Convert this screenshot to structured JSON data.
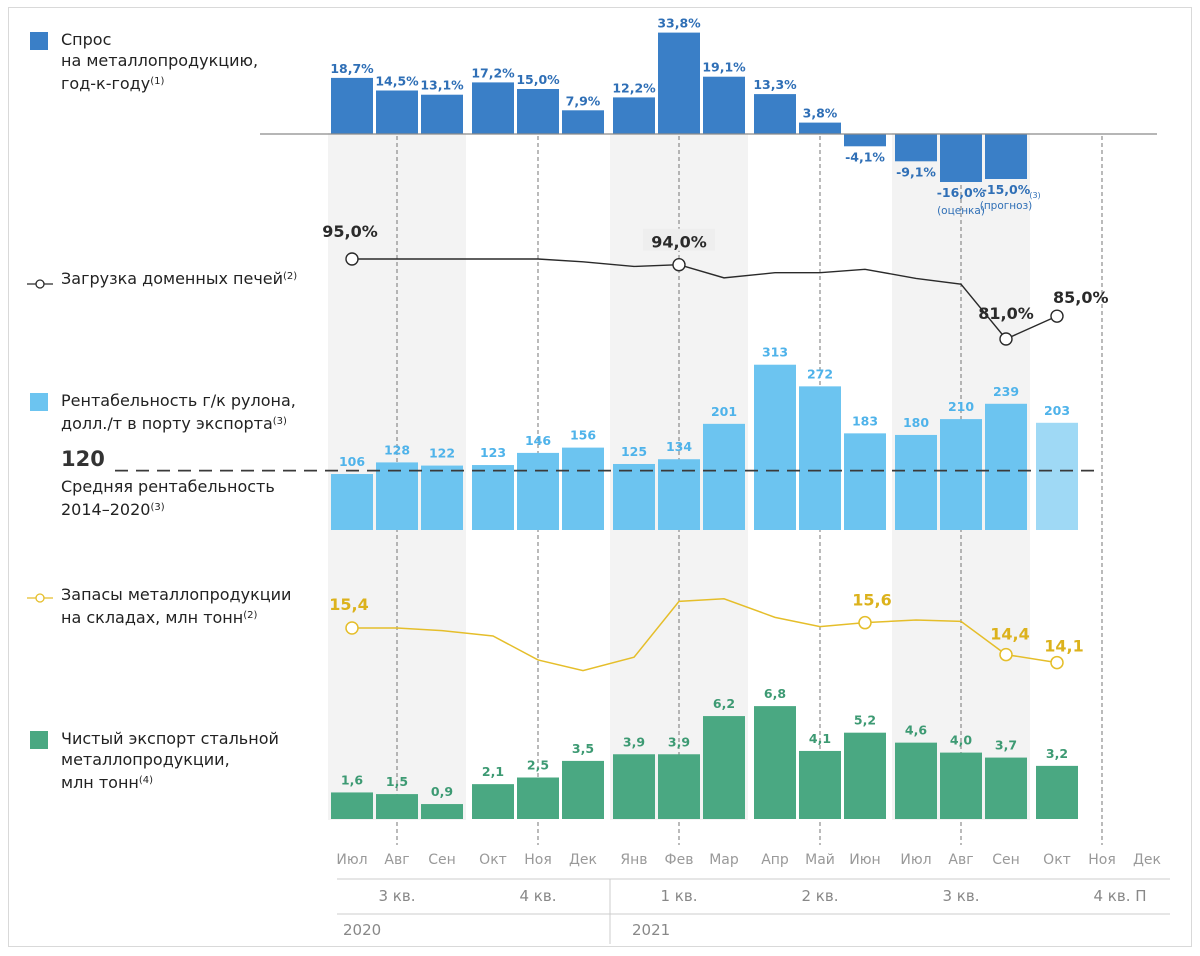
{
  "legends": {
    "demand": {
      "line1": "Спрос",
      "line2": "на металлопродукцию,",
      "line3": "год-к-году",
      "note": "(1)",
      "color": "#3a7fc7"
    },
    "blast_furnace": {
      "line1": "Загрузка доменных печей",
      "note": "(2)",
      "color": "#2a2a2a"
    },
    "profitability": {
      "line1": "Рентабельность г/к рулона,",
      "line2": "долл./т в порту экспорта",
      "note": "(3)",
      "color": "#6cc4f0"
    },
    "average": {
      "value": "120",
      "line1": "Средняя рентабельность",
      "line2": "2014–2020",
      "note": "(3)"
    },
    "stocks": {
      "line1": "Запасы металлопродукции",
      "line2": "на складах, млн тонн",
      "note": "(2)",
      "color": "#e5be2a"
    },
    "export": {
      "line1": "Чистый экспорт стальной",
      "line2": "металлопродукции,",
      "line3": "млн тонн",
      "note": "(4)",
      "color": "#4aa882"
    }
  },
  "chart_data": [
    {
      "type": "bar",
      "title": "Спрос на металлопродукцию, год-к-году(1)",
      "categories": [
        "Июл 2020",
        "Авг 2020",
        "Сен 2020",
        "Окт 2020",
        "Ноя 2020",
        "Дек 2020",
        "Янв 2021",
        "Фев 2021",
        "Мар 2021",
        "Апр 2021",
        "Май 2021",
        "Июн 2021",
        "Июл 2021",
        "Авг 2021",
        "Сен 2021"
      ],
      "values": [
        18.7,
        14.5,
        13.1,
        17.2,
        15.0,
        7.9,
        12.2,
        33.8,
        19.1,
        13.3,
        3.8,
        -4.1,
        -9.1,
        -16.0,
        -15.0
      ],
      "labels": [
        "18,7%",
        "14,5%",
        "13,1%",
        "17,2%",
        "15,0%",
        "7,9%",
        "12,2%",
        "33,8%",
        "19,1%",
        "13,3%",
        "3,8%",
        "-4,1%",
        "-9,1%",
        "-16,0%",
        "-15,0%"
      ],
      "notes": {
        "Авг 2021": "(оценка)",
        "Сен 2021": "(прогноз)",
        "Сен 2021 footnote": "(3)"
      },
      "unit": "%"
    },
    {
      "type": "line",
      "title": "Загрузка доменных печей(2)",
      "x": [
        "Июл 2020",
        "Авг 2020",
        "Сен 2020",
        "Окт 2020",
        "Ноя 2020",
        "Дек 2020",
        "Янв 2021",
        "Фев 2021",
        "Мар 2021",
        "Апр 2021",
        "Май 2021",
        "Июн 2021",
        "Июл 2021",
        "Авг 2021",
        "Сен 2021",
        "Окт 2021"
      ],
      "y": [
        95.0,
        95.0,
        95.0,
        95.0,
        95.0,
        94.5,
        93.7,
        94.0,
        91.7,
        92.6,
        92.6,
        93.2,
        91.6,
        90.6,
        81.0,
        85.0
      ],
      "labels": {
        "Июл 2020": "95,0%",
        "Фев 2021": "94,0%",
        "Сен 2021": "81,0%",
        "Окт 2021": "85,0%"
      },
      "unit": "%"
    },
    {
      "type": "bar",
      "title": "Рентабельность г/к рулона, долл./т в порту экспорта(3)",
      "categories": [
        "Июл 2020",
        "Авг 2020",
        "Сен 2020",
        "Окт 2020",
        "Ноя 2020",
        "Дек 2020",
        "Янв 2021",
        "Фев 2021",
        "Мар 2021",
        "Апр 2021",
        "Май 2021",
        "Июн 2021",
        "Июл 2021",
        "Авг 2021",
        "Сен 2021",
        "Окт 2021"
      ],
      "values": [
        106,
        128,
        122,
        123,
        146,
        156,
        125,
        134,
        201,
        313,
        272,
        183,
        180,
        210,
        239,
        203
      ],
      "reference_line": {
        "value": 120,
        "label": "Средняя рентабельность 2014–2020(3)",
        "style": "dashed"
      },
      "unit": "долл./т"
    },
    {
      "type": "line",
      "title": "Запасы металлопродукции на складах, млн тонн(2)",
      "x": [
        "Июл 2020",
        "Авг 2020",
        "Сен 2020",
        "Окт 2020",
        "Ноя 2020",
        "Дек 2020",
        "Янв 2021",
        "Фев 2021",
        "Мар 2021",
        "Апр 2021",
        "Май 2021",
        "Июн 2021",
        "Июл 2021",
        "Авг 2021",
        "Сен 2021",
        "Окт 2021"
      ],
      "y": [
        15.4,
        15.4,
        15.3,
        15.1,
        14.2,
        13.8,
        14.3,
        16.4,
        16.5,
        15.8,
        15.45,
        15.6,
        15.7,
        15.65,
        14.4,
        14.1
      ],
      "labels": {
        "Июл 2020": "15,4",
        "Июн 2021": "15,6",
        "Сен 2021": "14,4",
        "Окт 2021": "14,1"
      },
      "unit": "млн тонн"
    },
    {
      "type": "bar",
      "title": "Чистый экспорт стальной металлопродукции, млн тонн(4)",
      "categories": [
        "Июл 2020",
        "Авг 2020",
        "Сен 2020",
        "Окт 2020",
        "Ноя 2020",
        "Дек 2020",
        "Янв 2021",
        "Фев 2021",
        "Мар 2021",
        "Апр 2021",
        "Май 2021",
        "Июн 2021",
        "Июл 2021",
        "Авг 2021",
        "Сен 2021",
        "Окт 2021"
      ],
      "values": [
        1.6,
        1.5,
        0.9,
        2.1,
        2.5,
        3.5,
        3.9,
        3.9,
        6.2,
        6.8,
        4.1,
        5.2,
        4.6,
        4.0,
        3.7,
        3.2
      ],
      "labels": [
        "1,6",
        "1,5",
        "0,9",
        "2,1",
        "2,5",
        "3,5",
        "3,9",
        "3,9",
        "6,2",
        "6,8",
        "4,1",
        "5,2",
        "4,6",
        "4,0",
        "3,7",
        "3,2"
      ],
      "unit": "млн тонн"
    }
  ],
  "x_axis": {
    "months": [
      "Июл",
      "Авг",
      "Сен",
      "Окт",
      "Ноя",
      "Дек",
      "Янв",
      "Фев",
      "Мар",
      "Апр",
      "Май",
      "Июн",
      "Июл",
      "Авг",
      "Сен",
      "Окт",
      "Ноя",
      "Дек"
    ],
    "quarters": [
      "3 кв.",
      "4 кв.",
      "1 кв.",
      "2 кв.",
      "3 кв.",
      "4 кв. П"
    ],
    "years": [
      "2020",
      "2021"
    ]
  },
  "colors": {
    "demand": "#3a7fc7",
    "furnace": "#2a2a2a",
    "profit": "#6cc4f0",
    "profit_forecast": "#9fd9f5",
    "stocks": "#e5be2a",
    "export": "#4aa882",
    "band": "#f3f3f3",
    "axis_text": "#999999",
    "label_profit": "#4fb3ea"
  }
}
